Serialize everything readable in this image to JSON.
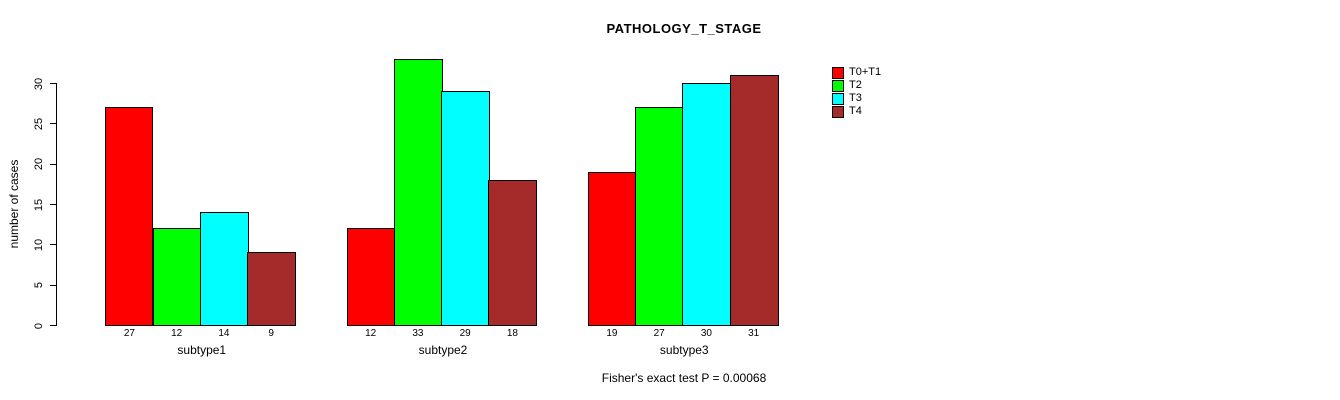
{
  "chart_data": {
    "type": "bar",
    "title": "PATHOLOGY_T_STAGE",
    "ylabel": "number of cases",
    "xlabel": "",
    "categories": [
      "subtype1",
      "subtype2",
      "subtype3"
    ],
    "series": [
      {
        "name": "T0+T1",
        "color": "#ff0000",
        "values": [
          27,
          12,
          19
        ]
      },
      {
        "name": "T2",
        "color": "#00ff00",
        "values": [
          12,
          33,
          27
        ]
      },
      {
        "name": "T3",
        "color": "#00ffff",
        "values": [
          14,
          29,
          30
        ]
      },
      {
        "name": "T4",
        "color": "#a52a2a",
        "values": [
          9,
          18,
          31
        ]
      }
    ],
    "bar_count_labels": [
      [
        27,
        12,
        14,
        9
      ],
      [
        12,
        33,
        29,
        18
      ],
      [
        19,
        27,
        30,
        31
      ]
    ],
    "yticks": [
      0,
      5,
      10,
      15,
      20,
      25,
      30
    ],
    "ylim": [
      0,
      33
    ],
    "grid": false,
    "legend_position": "top-right",
    "footnote": "Fisher's exact test P = 0.00068"
  }
}
